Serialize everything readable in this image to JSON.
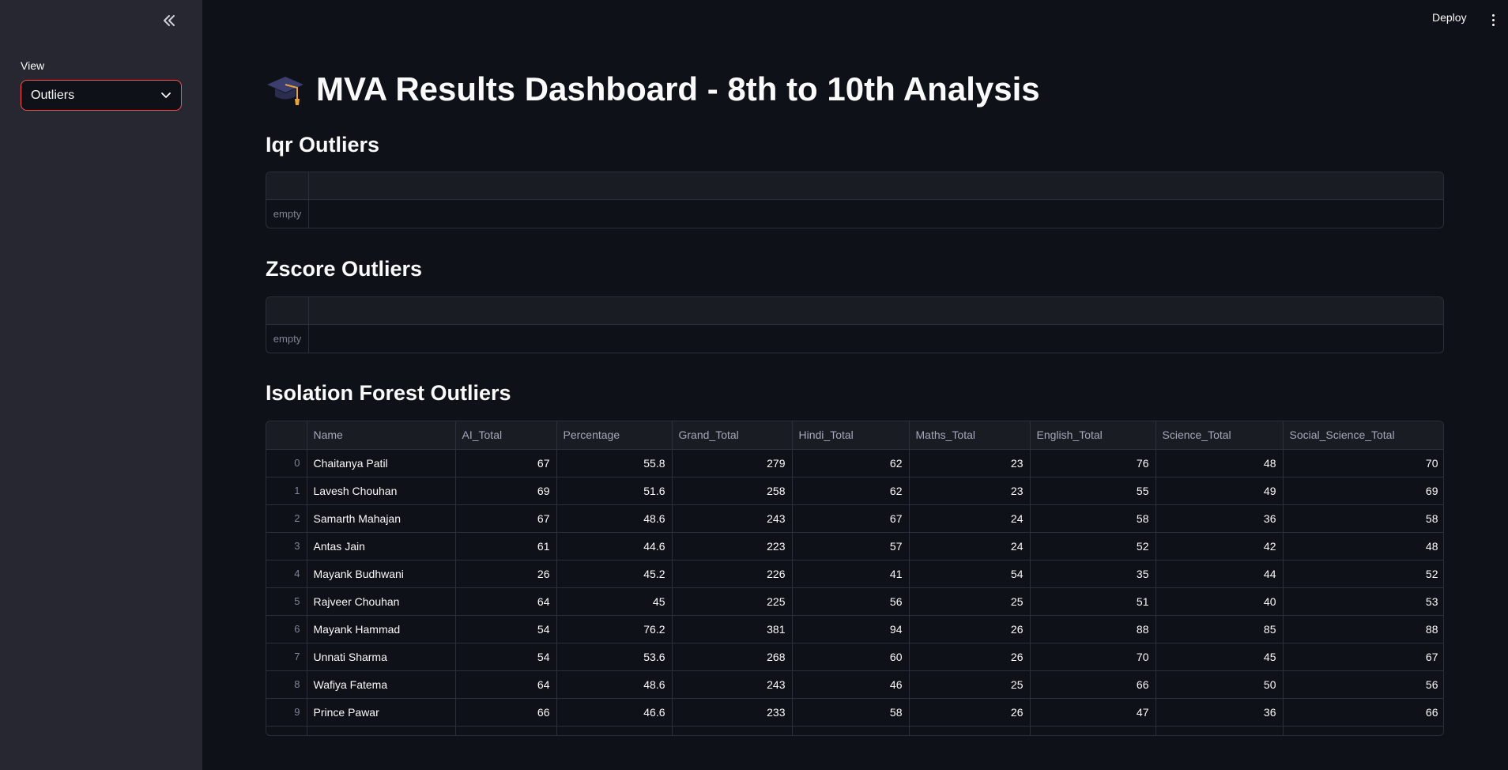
{
  "sidebar": {
    "view_label": "View",
    "view_select_value": "Outliers"
  },
  "header": {
    "deploy_label": "Deploy"
  },
  "main": {
    "title": "MVA Results Dashboard - 8th to 10th Analysis",
    "sections": [
      {
        "title": "Iqr Outliers",
        "empty_label": "empty"
      },
      {
        "title": "Zscore Outliers",
        "empty_label": "empty"
      },
      {
        "title": "Isolation Forest Outliers"
      }
    ],
    "table": {
      "columns": [
        "",
        "Name",
        "AI_Total",
        "Percentage",
        "Grand_Total",
        "Hindi_Total",
        "Maths_Total",
        "English_Total",
        "Science_Total",
        "Social_Science_Total"
      ],
      "rows": [
        [
          "0",
          "Chaitanya Patil",
          "67",
          "55.8",
          "279",
          "62",
          "23",
          "76",
          "48",
          "70"
        ],
        [
          "1",
          "Lavesh Chouhan",
          "69",
          "51.6",
          "258",
          "62",
          "23",
          "55",
          "49",
          "69"
        ],
        [
          "2",
          "Samarth Mahajan",
          "67",
          "48.6",
          "243",
          "67",
          "24",
          "58",
          "36",
          "58"
        ],
        [
          "3",
          "Antas Jain",
          "61",
          "44.6",
          "223",
          "57",
          "24",
          "52",
          "42",
          "48"
        ],
        [
          "4",
          "Mayank Budhwani",
          "26",
          "45.2",
          "226",
          "41",
          "54",
          "35",
          "44",
          "52"
        ],
        [
          "5",
          "Rajveer Chouhan",
          "64",
          "45",
          "225",
          "56",
          "25",
          "51",
          "40",
          "53"
        ],
        [
          "6",
          "Mayank Hammad",
          "54",
          "76.2",
          "381",
          "94",
          "26",
          "88",
          "85",
          "88"
        ],
        [
          "7",
          "Unnati Sharma",
          "54",
          "53.6",
          "268",
          "60",
          "26",
          "70",
          "45",
          "67"
        ],
        [
          "8",
          "Wafiya Fatema",
          "64",
          "48.6",
          "243",
          "46",
          "25",
          "66",
          "50",
          "56"
        ],
        [
          "9",
          "Prince Pawar",
          "66",
          "46.6",
          "233",
          "58",
          "26",
          "47",
          "36",
          "66"
        ]
      ]
    }
  },
  "icons": {
    "collapse": "double-chevron-left-icon",
    "select_arrow": "chevron-down-icon",
    "menu": "kebab-menu-icon",
    "title_emoji": "graduation-cap-icon"
  },
  "colors": {
    "background": "#0e1117",
    "sidebar": "#262730",
    "accent": "#ff4b4b",
    "grid_border": "#2d2f38",
    "grid_header": "#1a1c24"
  }
}
